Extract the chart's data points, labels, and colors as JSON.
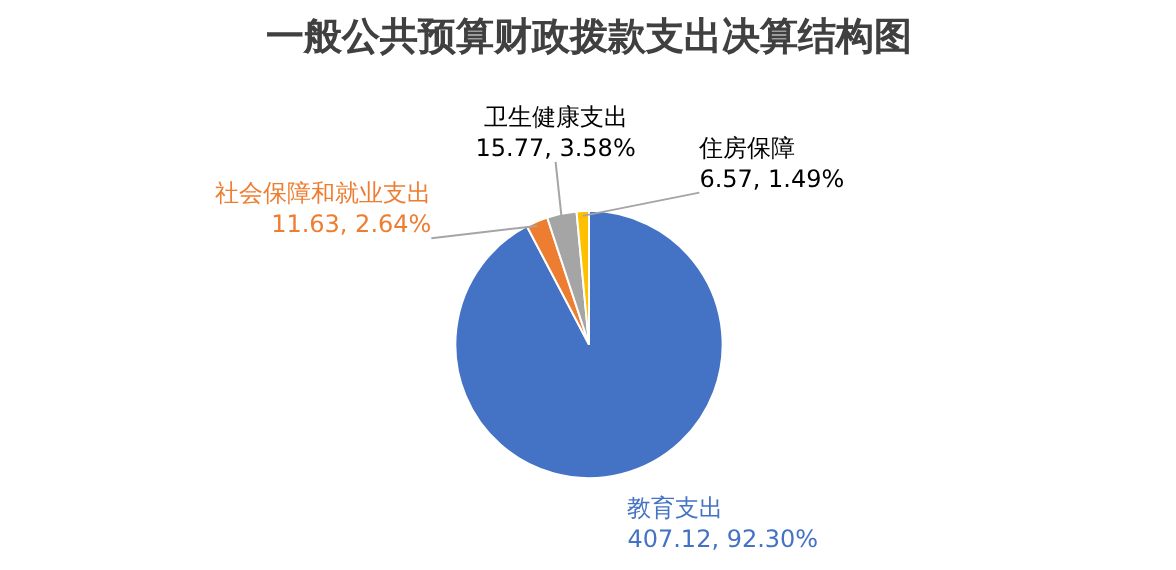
{
  "chart_data": {
    "type": "pie",
    "title": "一般公共预算财政拨款支出决算结构图",
    "categories": [
      "教育支出",
      "社会保障和就业支出",
      "卫生健康支出",
      "住房保障"
    ],
    "values": [
      407.12,
      11.63,
      15.77,
      6.57
    ],
    "value_labels": [
      "407.12, 92.30%",
      "11.63, 2.64%",
      "15.77, 3.58%",
      "6.57, 1.49%"
    ],
    "colors": [
      "#4472c4",
      "#ed7d31",
      "#a5a5a5",
      "#ffc000"
    ],
    "legend": false
  }
}
